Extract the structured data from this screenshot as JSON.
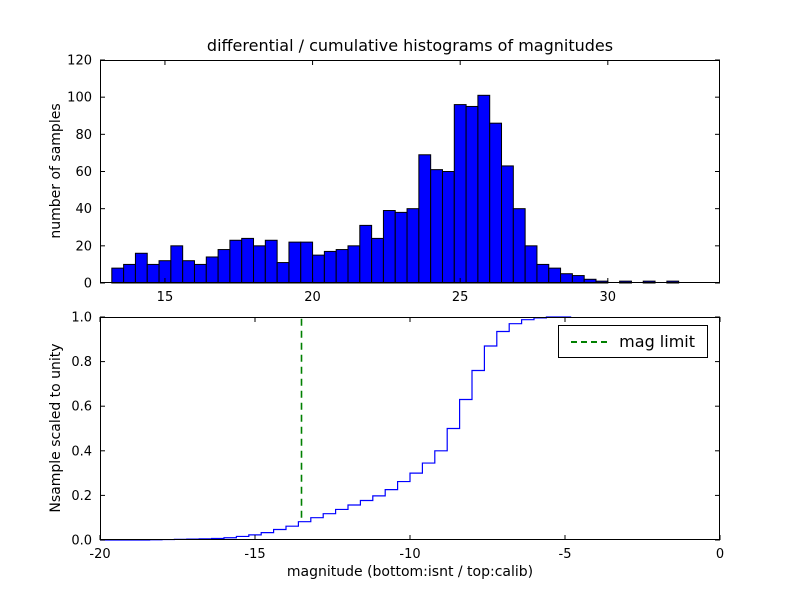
{
  "figure": {
    "background": "#ffffff",
    "frame_color": "#000000"
  },
  "chart_data": [
    {
      "type": "bar",
      "title": "differential / cumulative histograms of magnitudes",
      "ylabel": "number of samples",
      "xlabel": "",
      "xlim": [
        12.8,
        33.8
      ],
      "ylim": [
        0,
        120
      ],
      "xticks": [
        15,
        20,
        25,
        30
      ],
      "xtick_labels": [
        "15",
        "20",
        "25",
        "30"
      ],
      "yticks": [
        0,
        20,
        40,
        60,
        80,
        100,
        120
      ],
      "ytick_labels": [
        "0",
        "20",
        "40",
        "60",
        "80",
        "100",
        "120"
      ],
      "grid": false,
      "bar_color": "#0000ff",
      "bar_edge_color": "#000000",
      "bin_start": 13.2,
      "bin_width": 0.4,
      "values": [
        8,
        10,
        16,
        10,
        12,
        20,
        12,
        10,
        14,
        18,
        23,
        24,
        20,
        23,
        11,
        22,
        22,
        15,
        17,
        18,
        20,
        31,
        24,
        39,
        38,
        40,
        69,
        61,
        60,
        96,
        95,
        101,
        86,
        63,
        40,
        20,
        10,
        8,
        5,
        4,
        2,
        1,
        0,
        1,
        0,
        1,
        0,
        1
      ]
    },
    {
      "type": "line",
      "step": true,
      "title": "",
      "ylabel": "Nsample scaled to unity",
      "xlabel": "magnitude (bottom:isnt / top:calib)",
      "xlim": [
        -20,
        0
      ],
      "ylim": [
        0,
        1
      ],
      "xticks": [
        -20,
        -15,
        -10,
        -5,
        0
      ],
      "xtick_labels": [
        "-20",
        "-15",
        "-10",
        "-5",
        "0"
      ],
      "yticks": [
        0,
        0.2,
        0.4,
        0.6,
        0.8,
        1.0
      ],
      "ytick_labels": [
        "0.0",
        "0.2",
        "0.4",
        "0.6",
        "0.8",
        "1.0"
      ],
      "grid": false,
      "line_color": "#0000ff",
      "x_start": -20,
      "bin_width": 0.4,
      "y": [
        0.0,
        0.0,
        0.0,
        0.0,
        0.001,
        0.002,
        0.003,
        0.004,
        0.005,
        0.007,
        0.01,
        0.016,
        0.023,
        0.033,
        0.047,
        0.062,
        0.082,
        0.1,
        0.118,
        0.137,
        0.157,
        0.177,
        0.198,
        0.226,
        0.262,
        0.3,
        0.345,
        0.4,
        0.5,
        0.63,
        0.76,
        0.87,
        0.935,
        0.97,
        0.988,
        0.996,
        1.0,
        1.0
      ],
      "vline": {
        "x": -13.5,
        "ymin": 0.1,
        "ymax": 1.0,
        "color": "#008000",
        "style": "dashed",
        "label": "mag limit"
      },
      "legend": {
        "label": "mag limit",
        "position": "upper right",
        "line_color": "#008000",
        "line_style": "dashed"
      }
    }
  ]
}
